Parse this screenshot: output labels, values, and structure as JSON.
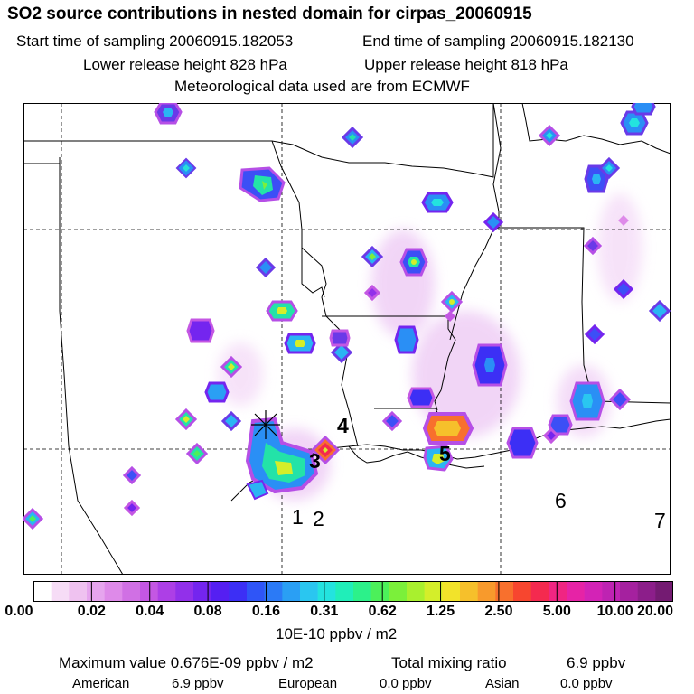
{
  "header": {
    "title": "SO2 source contributions in nested domain for cirpas_20060915",
    "start_label": "Start time of sampling 20060915.182053",
    "end_label": "End time of sampling 20060915.182130",
    "lower_label": "Lower release height  828 hPa",
    "upper_label": "Upper release height  818 hPa",
    "met_label": "Meteorological data used are from ECMWF"
  },
  "map": {
    "marker_symbol": "✕",
    "source_labels": [
      "1",
      "2",
      "3",
      "4",
      "5",
      "6",
      "7"
    ]
  },
  "colorbar": {
    "colors": [
      "#ffffff",
      "#f6dcf6",
      "#efc2f0",
      "#e6a5ee",
      "#de8ae9",
      "#d070e4",
      "#c457e3",
      "#ad3fe6",
      "#9230ea",
      "#7425ef",
      "#551ff2",
      "#3c2ff5",
      "#2f55f7",
      "#2b7af6",
      "#2a9ff4",
      "#2ac6f0",
      "#23e3df",
      "#20eeb9",
      "#2cf18a",
      "#4cf05a",
      "#7bf03a",
      "#a9f02e",
      "#d4ee2a",
      "#f2e32a",
      "#f6c02b",
      "#f89a2c",
      "#f8702d",
      "#f7462f",
      "#f42a4f",
      "#f02582",
      "#e623a6",
      "#d323b6",
      "#be23b2",
      "#a5219f",
      "#8c1e8a",
      "#741b72"
    ],
    "ticks": [
      "0.00",
      "0.02",
      "0.04",
      "0.08",
      "0.16",
      "0.31",
      "0.62",
      "1.25",
      "2.50",
      "5.00",
      "10.00",
      "20.00"
    ],
    "units": "10E-10 ppbv / m2"
  },
  "footer": {
    "max_label": "Maximum value  0.676E-09 ppbv / m2",
    "total_label": "Total mixing ratio",
    "total_value": "6.9 ppbv",
    "american_label": "American",
    "american_value": "6.9 ppbv",
    "european_label": "European",
    "european_value": "0.0 ppbv",
    "asian_label": "Asian",
    "asian_value": "0.0 ppbv"
  }
}
